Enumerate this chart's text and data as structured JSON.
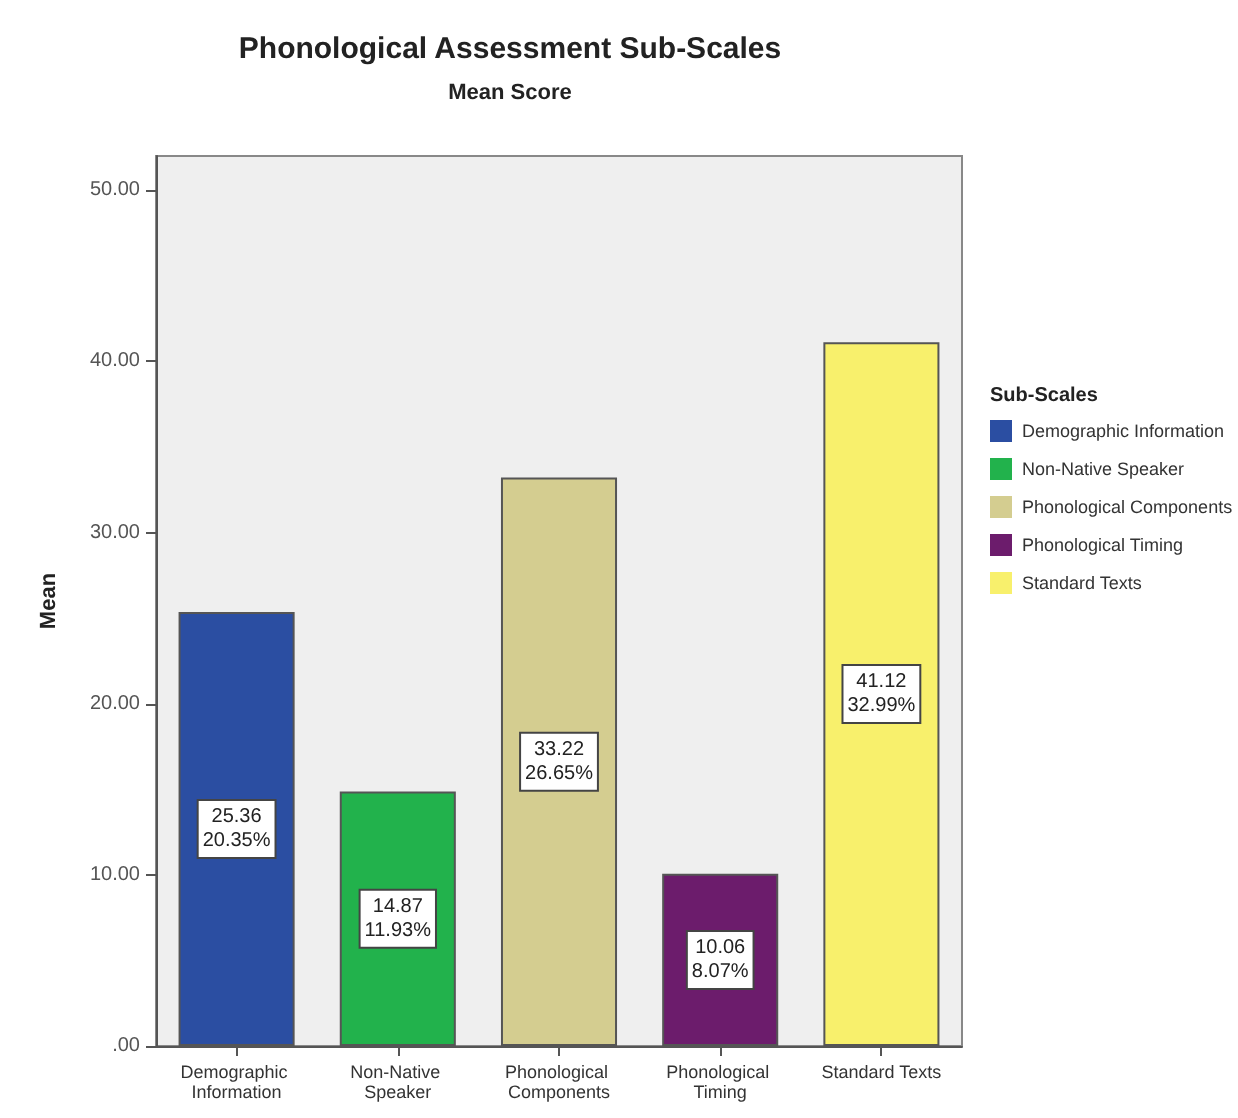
{
  "chart_data": {
    "type": "bar",
    "title": "Phonological Assessment Sub-Scales",
    "subtitle": "Mean Score",
    "ylabel": "Mean",
    "legend_title": "Sub-Scales",
    "categories": [
      "Demographic Information",
      "Non-Native Speaker",
      "Phonological Components",
      "Phonological Timing",
      "Standard Texts"
    ],
    "series": [
      {
        "name": "Demographic Information",
        "color": "#2b4ea2",
        "values": [
          25.36,
          null,
          null,
          null,
          null
        ],
        "value_labels": [
          "25.36\n20.35%",
          null,
          null,
          null,
          null
        ]
      },
      {
        "name": "Non-Native Speaker",
        "color": "#22b24c",
        "values": [
          null,
          14.87,
          null,
          null,
          null
        ],
        "value_labels": [
          null,
          "14.87\n11.93%",
          null,
          null,
          null
        ]
      },
      {
        "name": "Phonological Components",
        "color": "#d4cd90",
        "values": [
          null,
          null,
          33.22,
          null,
          null
        ],
        "value_labels": [
          null,
          null,
          "33.22\n26.65%",
          null,
          null
        ]
      },
      {
        "name": "Phonological Timing",
        "color": "#6c1c6c",
        "values": [
          null,
          null,
          null,
          10.06,
          null
        ],
        "value_labels": [
          null,
          null,
          null,
          "10.06\n8.07%",
          null
        ]
      },
      {
        "name": "Standard Texts",
        "color": "#f8f06c",
        "values": [
          null,
          null,
          null,
          null,
          41.12
        ],
        "value_labels": [
          null,
          null,
          null,
          null,
          "41.12\n32.99%"
        ]
      }
    ],
    "ylim": [
      0,
      52
    ],
    "yticks": [
      {
        "value": 0,
        "label": ".00"
      },
      {
        "value": 10,
        "label": "10.00"
      },
      {
        "value": 20,
        "label": "20.00"
      },
      {
        "value": 30,
        "label": "30.00"
      },
      {
        "value": 40,
        "label": "40.00"
      },
      {
        "value": 50,
        "label": "50.00"
      }
    ],
    "grid": false,
    "legend": "right"
  }
}
